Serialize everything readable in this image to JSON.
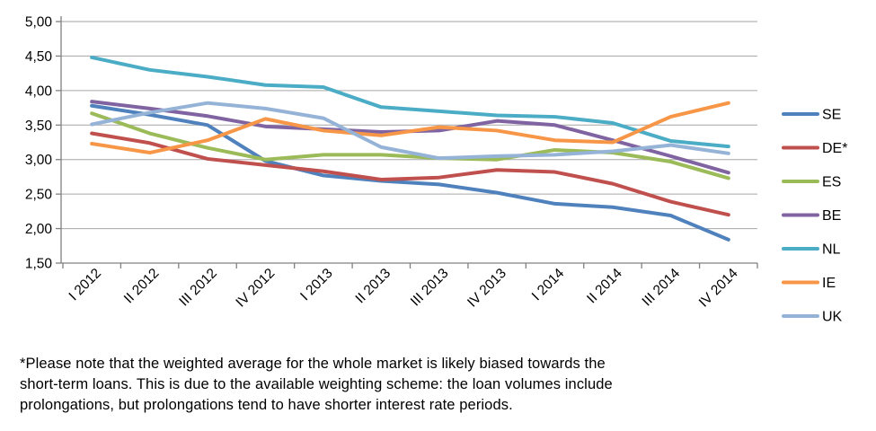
{
  "chart_data": {
    "type": "line",
    "title": "",
    "xlabel": "",
    "ylabel": "",
    "grid": true,
    "legend_position": "right",
    "decimal_style": "comma",
    "ylim": [
      1.5,
      5.0
    ],
    "y_tick_labels": [
      "5,00",
      "4,50",
      "4,00",
      "3,50",
      "3,00",
      "2,50",
      "2,00",
      "1,50"
    ],
    "categories": [
      "I 2012",
      "II 2012",
      "III 2012",
      "IV 2012",
      "I 2013",
      "II 2013",
      "III 2013",
      "IV 2013",
      "I 2014",
      "II 2014",
      "III 2014",
      "IV 2014"
    ],
    "series": [
      {
        "name": "SE",
        "color": "#4F81BD",
        "values": [
          3.78,
          3.65,
          3.5,
          2.98,
          2.77,
          2.69,
          2.64,
          2.52,
          2.36,
          2.31,
          2.19,
          1.84
        ]
      },
      {
        "name": "DE*",
        "color": "#C0504D",
        "values": [
          3.38,
          3.24,
          3.01,
          2.92,
          2.83,
          2.71,
          2.74,
          2.85,
          2.82,
          2.65,
          2.39,
          2.2
        ]
      },
      {
        "name": "ES",
        "color": "#9BBB59",
        "values": [
          3.67,
          3.38,
          3.17,
          3.0,
          3.07,
          3.07,
          3.02,
          3.0,
          3.14,
          3.1,
          2.97,
          2.73
        ]
      },
      {
        "name": "BE",
        "color": "#8064A2",
        "values": [
          3.84,
          3.74,
          3.63,
          3.48,
          3.44,
          3.4,
          3.42,
          3.56,
          3.5,
          3.28,
          3.05,
          2.81
        ]
      },
      {
        "name": "NL",
        "color": "#4BACC6",
        "values": [
          4.48,
          4.3,
          4.2,
          4.08,
          4.05,
          3.76,
          3.7,
          3.64,
          3.62,
          3.53,
          3.27,
          3.19
        ]
      },
      {
        "name": "IE",
        "color": "#F79646",
        "values": [
          3.23,
          3.1,
          3.28,
          3.59,
          3.42,
          3.35,
          3.47,
          3.42,
          3.28,
          3.25,
          3.62,
          3.82
        ]
      },
      {
        "name": "UK",
        "color": "#95B3D7",
        "values": [
          3.51,
          3.68,
          3.82,
          3.74,
          3.6,
          3.18,
          3.02,
          3.05,
          3.07,
          3.12,
          3.21,
          3.09
        ]
      }
    ],
    "colors": {
      "gridline": "#A6A6A6",
      "axis": "#808080",
      "text": "#000000"
    },
    "footnote_lines": [
      "*Please note that the weighted average for the whole market is likely biased towards the",
      "short-term loans. This is due to the available weighting scheme: the loan volumes include",
      "prolongations, but prolongations tend to have shorter interest rate periods."
    ]
  }
}
